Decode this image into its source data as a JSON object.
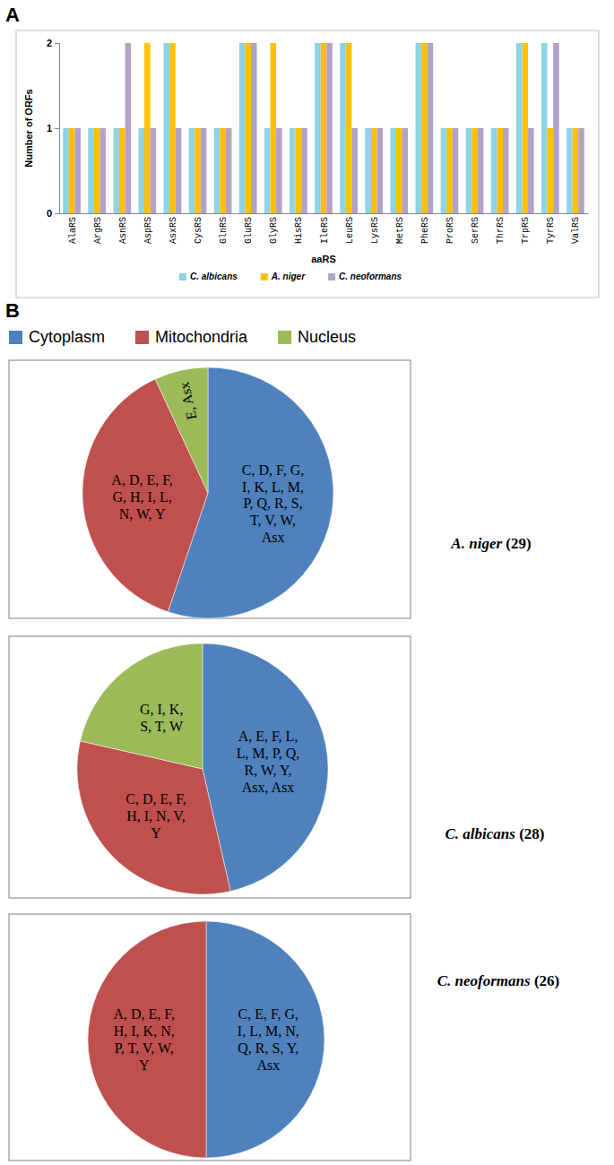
{
  "chart_data": [
    {
      "type": "bar",
      "panel": "A",
      "x_label": "aaRS",
      "y_label": "Number of ORFs",
      "categories": [
        "AlaRS",
        "ArgRS",
        "AsnRS",
        "AspRS",
        "AsxRS",
        "CysRS",
        "GlnRS",
        "GluRS",
        "GlyRS",
        "HisRS",
        "IleRS",
        "LeuRS",
        "LysRS",
        "MetRS",
        "PheRS",
        "ProRS",
        "SerRS",
        "ThrRS",
        "TrpRS",
        "TyrRS",
        "ValRS"
      ],
      "series": [
        {
          "name": "C. albicans",
          "color": "#8ed3e6",
          "values": [
            1,
            1,
            1,
            1,
            2,
            1,
            1,
            2,
            1,
            1,
            2,
            2,
            1,
            1,
            2,
            1,
            1,
            1,
            2,
            2,
            1
          ]
        },
        {
          "name": "A. niger",
          "color": "#ffc000",
          "values": [
            1,
            1,
            1,
            2,
            2,
            1,
            1,
            2,
            2,
            1,
            2,
            2,
            1,
            1,
            2,
            1,
            1,
            1,
            2,
            1,
            1
          ]
        },
        {
          "name": "C. neoformans",
          "color": "#b3a2c7",
          "values": [
            1,
            1,
            2,
            1,
            1,
            1,
            1,
            2,
            1,
            1,
            2,
            1,
            1,
            1,
            2,
            1,
            1,
            1,
            1,
            2,
            1
          ]
        }
      ],
      "ylim": [
        0,
        2
      ],
      "yticks": [
        0,
        1,
        2
      ],
      "grid": false,
      "legend": "bottom"
    },
    {
      "type": "pie",
      "panel": "B",
      "title": "A. niger (29)",
      "categories": [
        "Cytoplasm",
        "Mitochondria",
        "Nucleus"
      ],
      "values": [
        16,
        11,
        2
      ],
      "colors": [
        "#4f81bd",
        "#c0504d",
        "#9bbb59"
      ],
      "annotations": [
        "C, D, F, G, I, K, L, M, P, Q, R, S, T, V, W, Asx",
        "A, D, E, F, G, H, I, L, N, W, Y",
        "E, Asx"
      ],
      "legend": "top"
    },
    {
      "type": "pie",
      "title": "C. albicans (28)",
      "categories": [
        "Cytoplasm",
        "Mitochondria",
        "Nucleus"
      ],
      "values": [
        13,
        9,
        6
      ],
      "colors": [
        "#4f81bd",
        "#c0504d",
        "#9bbb59"
      ],
      "annotations": [
        "A, E, F, L, L, M, P, Q, R, W, Y, Asx, Asx",
        "C, D, E, F, H, I, N, V, Y",
        "G, I, K, S, T, W"
      ]
    },
    {
      "type": "pie",
      "title": "C. neoformans (26)",
      "categories": [
        "Cytoplasm",
        "Mitochondria"
      ],
      "values": [
        13,
        13
      ],
      "colors": [
        "#4f81bd",
        "#c0504d"
      ],
      "annotations": [
        "C, E, F, G, I, L, M, N, Q, R, S, Y, Asx",
        "A, D, E, F, H, I, K, N, P, T, V, W, Y"
      ]
    }
  ]
}
